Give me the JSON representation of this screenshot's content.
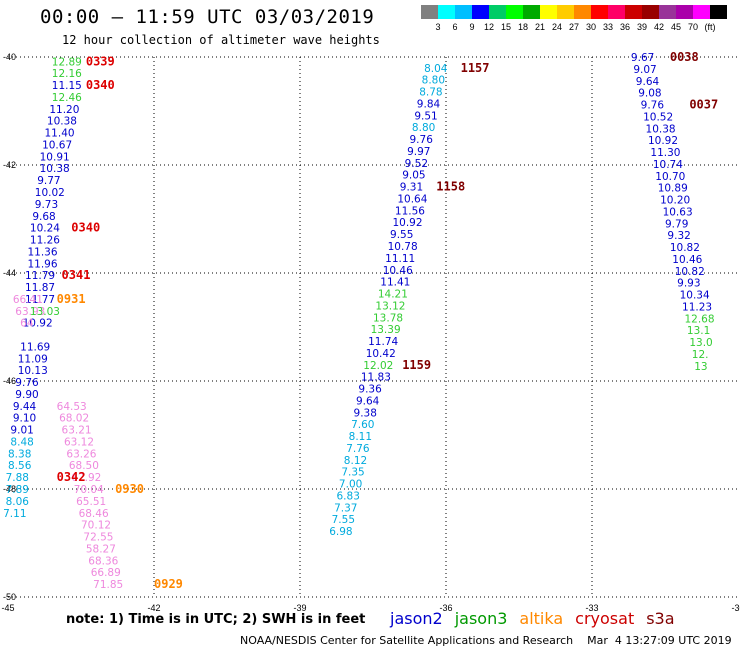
{
  "title": "00:00 – 11:59 UTC 03/03/2019",
  "subtitle": "12 hour collection of altimeter wave heights",
  "note": "note:  1) Time is in UTC; 2) SWH is in feet",
  "footer": "NOAA/NESDIS Center for Satellite Applications and Research    Mar  4 13:27:09 UTC 2019",
  "satellites": [
    {
      "name": "jason2",
      "color": "#0000cc"
    },
    {
      "name": "jason3",
      "color": "#009900"
    },
    {
      "name": "altika",
      "color": "#ff8800"
    },
    {
      "name": "cryosat",
      "color": "#cc0000"
    },
    {
      "name": "s3a",
      "color": "#800000"
    }
  ],
  "colorbar": {
    "colors": [
      "#808080",
      "#00ffff",
      "#00bfff",
      "#0000ff",
      "#00cc66",
      "#00ff00",
      "#00aa00",
      "#ffff00",
      "#ffcc00",
      "#ff8800",
      "#ff0000",
      "#ff0066",
      "#cc0000",
      "#990000",
      "#993399",
      "#aa00aa",
      "#ff00ff",
      "#000000"
    ],
    "labels": [
      "3",
      "6",
      "9",
      "12",
      "15",
      "18",
      "21",
      "24",
      "27",
      "30",
      "33",
      "36",
      "39",
      "42",
      "45",
      "70",
      "(ft)"
    ]
  },
  "chart_data": {
    "type": "scatter",
    "x_ticks": [
      "-45",
      "-42",
      "-39",
      "-36",
      "-33",
      "-30"
    ],
    "y_ticks": [
      "-40",
      "-42",
      "-44",
      "-46",
      "-48",
      "-50"
    ],
    "xlim": [
      -45,
      -30
    ],
    "ylim": [
      -50,
      -40
    ],
    "grid": true,
    "labels": [
      {
        "x": -44.1,
        "y": -40.08,
        "t": "12.89",
        "c": "#33cc33"
      },
      {
        "x": -44.1,
        "y": -40.3,
        "t": "12.16",
        "c": "#33cc33"
      },
      {
        "x": -44.1,
        "y": -40.52,
        "t": "11.15",
        "c": "#0000cc"
      },
      {
        "x": -44.1,
        "y": -40.74,
        "t": "12.46",
        "c": "#33cc33"
      },
      {
        "x": -44.15,
        "y": -40.96,
        "t": "11.20",
        "c": "#0000cc"
      },
      {
        "x": -44.2,
        "y": -41.18,
        "t": "10.38",
        "c": "#0000cc"
      },
      {
        "x": -44.25,
        "y": -41.4,
        "t": "11.40",
        "c": "#0000cc"
      },
      {
        "x": -44.3,
        "y": -41.62,
        "t": "10.67",
        "c": "#0000cc"
      },
      {
        "x": -44.35,
        "y": -41.84,
        "t": "10.91",
        "c": "#0000cc"
      },
      {
        "x": -44.35,
        "y": -42.06,
        "t": "10.38",
        "c": "#0000cc"
      },
      {
        "x": -44.4,
        "y": -42.28,
        "t": "9.77",
        "c": "#0000cc"
      },
      {
        "x": -44.45,
        "y": -42.5,
        "t": "10.02",
        "c": "#0000cc"
      },
      {
        "x": -44.45,
        "y": -42.72,
        "t": "9.73",
        "c": "#0000cc"
      },
      {
        "x": -44.5,
        "y": -42.94,
        "t": "9.68",
        "c": "#0000cc"
      },
      {
        "x": -44.55,
        "y": -43.16,
        "t": "10.24",
        "c": "#0000cc"
      },
      {
        "x": -44.55,
        "y": -43.38,
        "t": "11.26",
        "c": "#0000cc"
      },
      {
        "x": -44.6,
        "y": -43.6,
        "t": "11.36",
        "c": "#0000cc"
      },
      {
        "x": -44.6,
        "y": -43.82,
        "t": "11.96",
        "c": "#0000cc"
      },
      {
        "x": -44.65,
        "y": -44.04,
        "t": "11.79",
        "c": "#0000cc"
      },
      {
        "x": -44.65,
        "y": -44.26,
        "t": "11.87",
        "c": "#0000cc"
      },
      {
        "x": -44.65,
        "y": -44.48,
        "t": "11.77",
        "c": "#0000cc"
      },
      {
        "x": -44.7,
        "y": -44.92,
        "t": "10.92",
        "c": "#0000cc"
      },
      {
        "x": -44.75,
        "y": -45.36,
        "t": "11.69",
        "c": "#0000cc"
      },
      {
        "x": -44.8,
        "y": -45.58,
        "t": "11.09",
        "c": "#0000cc"
      },
      {
        "x": -44.8,
        "y": -45.8,
        "t": "10.13",
        "c": "#0000cc"
      },
      {
        "x": -44.85,
        "y": -46.02,
        "t": "9.76",
        "c": "#0000cc"
      },
      {
        "x": -44.85,
        "y": -46.24,
        "t": "9.90",
        "c": "#0000cc"
      },
      {
        "x": -44.9,
        "y": -46.46,
        "t": "9.44",
        "c": "#0000cc"
      },
      {
        "x": -44.9,
        "y": -46.68,
        "t": "9.10",
        "c": "#0000cc"
      },
      {
        "x": -44.95,
        "y": -46.9,
        "t": "9.01",
        "c": "#0000cc"
      },
      {
        "x": -44.95,
        "y": -47.12,
        "t": "8.48",
        "c": "#00aadd"
      },
      {
        "x": -45.0,
        "y": -47.34,
        "t": "8.38",
        "c": "#00aadd"
      },
      {
        "x": -45.0,
        "y": -47.56,
        "t": "8.56",
        "c": "#00aadd"
      },
      {
        "x": -45.05,
        "y": -47.78,
        "t": "7.88",
        "c": "#00aadd"
      },
      {
        "x": -45.05,
        "y": -48.0,
        "t": "7.89",
        "c": "#00aadd"
      },
      {
        "x": -45.05,
        "y": -48.22,
        "t": "8.06",
        "c": "#00aadd"
      },
      {
        "x": -45.1,
        "y": -48.44,
        "t": "7.11",
        "c": "#00aadd"
      },
      {
        "x": -44.9,
        "y": -44.48,
        "t": "66.41",
        "c": "#ee88dd"
      },
      {
        "x": -44.85,
        "y": -44.7,
        "t": "63.93",
        "c": "#ee88dd"
      },
      {
        "x": -44.75,
        "y": -44.92,
        "t": "64",
        "c": "#ee88dd"
      },
      {
        "x": -44.0,
        "y": -46.46,
        "t": "64.53",
        "c": "#ee88dd"
      },
      {
        "x": -43.95,
        "y": -46.68,
        "t": "68.02",
        "c": "#ee88dd"
      },
      {
        "x": -43.9,
        "y": -46.9,
        "t": "63.21",
        "c": "#ee88dd"
      },
      {
        "x": -43.85,
        "y": -47.12,
        "t": "63.12",
        "c": "#ee88dd"
      },
      {
        "x": -43.8,
        "y": -47.34,
        "t": "63.26",
        "c": "#ee88dd"
      },
      {
        "x": -43.75,
        "y": -47.56,
        "t": "68.50",
        "c": "#ee88dd"
      },
      {
        "x": -43.7,
        "y": -47.78,
        "t": "62.92",
        "c": "#ee88dd"
      },
      {
        "x": -43.65,
        "y": -48.0,
        "t": "70.04",
        "c": "#ee88dd"
      },
      {
        "x": -43.6,
        "y": -48.22,
        "t": "65.51",
        "c": "#ee88dd"
      },
      {
        "x": -43.55,
        "y": -48.44,
        "t": "68.46",
        "c": "#ee88dd"
      },
      {
        "x": -43.5,
        "y": -48.66,
        "t": "70.12",
        "c": "#ee88dd"
      },
      {
        "x": -43.45,
        "y": -48.88,
        "t": "72.55",
        "c": "#ee88dd"
      },
      {
        "x": -43.4,
        "y": -49.1,
        "t": "58.27",
        "c": "#ee88dd"
      },
      {
        "x": -43.35,
        "y": -49.32,
        "t": "68.36",
        "c": "#ee88dd"
      },
      {
        "x": -43.3,
        "y": -49.54,
        "t": "66.89",
        "c": "#ee88dd"
      },
      {
        "x": -43.25,
        "y": -49.76,
        "t": "71.85",
        "c": "#ee88dd"
      },
      {
        "x": -44.55,
        "y": -44.7,
        "t": "13.03",
        "c": "#33cc33"
      },
      {
        "x": -36.45,
        "y": -40.2,
        "t": "8.04",
        "c": "#00aadd"
      },
      {
        "x": -36.5,
        "y": -40.42,
        "t": "8.80",
        "c": "#00aadd"
      },
      {
        "x": -36.55,
        "y": -40.64,
        "t": "8.78",
        "c": "#00aadd"
      },
      {
        "x": -36.6,
        "y": -40.86,
        "t": "9.84",
        "c": "#0000cc"
      },
      {
        "x": -36.65,
        "y": -41.08,
        "t": "9.51",
        "c": "#0000cc"
      },
      {
        "x": -36.7,
        "y": -41.3,
        "t": "8.80",
        "c": "#00aadd"
      },
      {
        "x": -36.75,
        "y": -41.52,
        "t": "9.76",
        "c": "#0000cc"
      },
      {
        "x": -36.8,
        "y": -41.74,
        "t": "9.97",
        "c": "#0000cc"
      },
      {
        "x": -36.85,
        "y": -41.96,
        "t": "9.52",
        "c": "#0000cc"
      },
      {
        "x": -36.9,
        "y": -42.18,
        "t": "9.05",
        "c": "#0000cc"
      },
      {
        "x": -36.95,
        "y": -42.4,
        "t": "9.31",
        "c": "#0000cc"
      },
      {
        "x": -37.0,
        "y": -42.62,
        "t": "10.64",
        "c": "#0000cc"
      },
      {
        "x": -37.05,
        "y": -42.84,
        "t": "11.56",
        "c": "#0000cc"
      },
      {
        "x": -37.1,
        "y": -43.06,
        "t": "10.92",
        "c": "#0000cc"
      },
      {
        "x": -37.15,
        "y": -43.28,
        "t": "9.55",
        "c": "#0000cc"
      },
      {
        "x": -37.2,
        "y": -43.5,
        "t": "10.78",
        "c": "#0000cc"
      },
      {
        "x": -37.25,
        "y": -43.72,
        "t": "11.11",
        "c": "#0000cc"
      },
      {
        "x": -37.3,
        "y": -43.94,
        "t": "10.46",
        "c": "#0000cc"
      },
      {
        "x": -37.35,
        "y": -44.16,
        "t": "11.41",
        "c": "#0000cc"
      },
      {
        "x": -37.4,
        "y": -44.38,
        "t": "14.21",
        "c": "#33cc33"
      },
      {
        "x": -37.45,
        "y": -44.6,
        "t": "13.12",
        "c": "#33cc33"
      },
      {
        "x": -37.5,
        "y": -44.82,
        "t": "13.78",
        "c": "#33cc33"
      },
      {
        "x": -37.55,
        "y": -45.04,
        "t": "13.39",
        "c": "#33cc33"
      },
      {
        "x": -37.6,
        "y": -45.26,
        "t": "11.74",
        "c": "#0000cc"
      },
      {
        "x": -37.65,
        "y": -45.48,
        "t": "10.42",
        "c": "#0000cc"
      },
      {
        "x": -37.7,
        "y": -45.7,
        "t": "12.02",
        "c": "#33cc33"
      },
      {
        "x": -37.75,
        "y": -45.92,
        "t": "11.83",
        "c": "#0000cc"
      },
      {
        "x": -37.8,
        "y": -46.14,
        "t": "9.36",
        "c": "#0000cc"
      },
      {
        "x": -37.85,
        "y": -46.36,
        "t": "9.64",
        "c": "#0000cc"
      },
      {
        "x": -37.9,
        "y": -46.58,
        "t": "9.38",
        "c": "#0000cc"
      },
      {
        "x": -37.95,
        "y": -46.8,
        "t": "7.60",
        "c": "#00aadd"
      },
      {
        "x": -38.0,
        "y": -47.02,
        "t": "8.11",
        "c": "#00aadd"
      },
      {
        "x": -38.05,
        "y": -47.24,
        "t": "7.76",
        "c": "#00aadd"
      },
      {
        "x": -38.1,
        "y": -47.46,
        "t": "8.12",
        "c": "#00aadd"
      },
      {
        "x": -38.15,
        "y": -47.68,
        "t": "7.35",
        "c": "#00aadd"
      },
      {
        "x": -38.2,
        "y": -47.9,
        "t": "7.00",
        "c": "#00aadd"
      },
      {
        "x": -38.25,
        "y": -48.12,
        "t": "6.83",
        "c": "#00aadd"
      },
      {
        "x": -38.3,
        "y": -48.34,
        "t": "7.37",
        "c": "#00aadd"
      },
      {
        "x": -38.35,
        "y": -48.56,
        "t": "7.55",
        "c": "#00aadd"
      },
      {
        "x": -38.4,
        "y": -48.78,
        "t": "6.98",
        "c": "#00aadd"
      },
      {
        "x": -32.2,
        "y": -40.0,
        "t": "9.67",
        "c": "#0000cc"
      },
      {
        "x": -32.15,
        "y": -40.22,
        "t": "9.07",
        "c": "#0000cc"
      },
      {
        "x": -32.1,
        "y": -40.44,
        "t": "9.64",
        "c": "#0000cc"
      },
      {
        "x": -32.05,
        "y": -40.66,
        "t": "9.08",
        "c": "#0000cc"
      },
      {
        "x": -32.0,
        "y": -40.88,
        "t": "9.76",
        "c": "#0000cc"
      },
      {
        "x": -31.95,
        "y": -41.1,
        "t": "10.52",
        "c": "#0000cc"
      },
      {
        "x": -31.9,
        "y": -41.32,
        "t": "10.38",
        "c": "#0000cc"
      },
      {
        "x": -31.85,
        "y": -41.54,
        "t": "10.92",
        "c": "#0000cc"
      },
      {
        "x": -31.8,
        "y": -41.76,
        "t": "11.30",
        "c": "#0000cc"
      },
      {
        "x": -31.75,
        "y": -41.98,
        "t": "10.74",
        "c": "#0000cc"
      },
      {
        "x": -31.7,
        "y": -42.2,
        "t": "10.70",
        "c": "#0000cc"
      },
      {
        "x": -31.65,
        "y": -42.42,
        "t": "10.89",
        "c": "#0000cc"
      },
      {
        "x": -31.6,
        "y": -42.64,
        "t": "10.20",
        "c": "#0000cc"
      },
      {
        "x": -31.55,
        "y": -42.86,
        "t": "10.63",
        "c": "#0000cc"
      },
      {
        "x": -31.5,
        "y": -43.08,
        "t": "9.79",
        "c": "#0000cc"
      },
      {
        "x": -31.45,
        "y": -43.3,
        "t": "9.32",
        "c": "#0000cc"
      },
      {
        "x": -31.4,
        "y": -43.52,
        "t": "10.82",
        "c": "#0000cc"
      },
      {
        "x": -31.35,
        "y": -43.74,
        "t": "10.46",
        "c": "#0000cc"
      },
      {
        "x": -31.3,
        "y": -43.96,
        "t": "10.82",
        "c": "#0000cc"
      },
      {
        "x": -31.25,
        "y": -44.18,
        "t": "9.93",
        "c": "#0000cc"
      },
      {
        "x": -31.2,
        "y": -44.4,
        "t": "10.34",
        "c": "#0000cc"
      },
      {
        "x": -31.15,
        "y": -44.62,
        "t": "11.23",
        "c": "#0000cc"
      },
      {
        "x": -31.1,
        "y": -44.84,
        "t": "12.68",
        "c": "#33cc33"
      },
      {
        "x": -31.05,
        "y": -45.06,
        "t": "13.1",
        "c": "#33cc33"
      },
      {
        "x": -31.0,
        "y": -45.28,
        "t": "13.0",
        "c": "#33cc33"
      },
      {
        "x": -30.95,
        "y": -45.5,
        "t": "12.",
        "c": "#33cc33"
      },
      {
        "x": -30.9,
        "y": -45.72,
        "t": "13",
        "c": "#33cc33"
      }
    ],
    "times": [
      {
        "x": -43.4,
        "y": -40.08,
        "t": "0339",
        "c": "#dd0000"
      },
      {
        "x": -43.4,
        "y": -40.52,
        "t": "0340",
        "c": "#dd0000"
      },
      {
        "x": -43.7,
        "y": -43.16,
        "t": "0340",
        "c": "#dd0000"
      },
      {
        "x": -43.9,
        "y": -44.04,
        "t": "0341",
        "c": "#dd0000"
      },
      {
        "x": -44.0,
        "y": -44.48,
        "t": "0931",
        "c": "#ff8800"
      },
      {
        "x": -44.0,
        "y": -47.78,
        "t": "0342",
        "c": "#dd0000"
      },
      {
        "x": -42.8,
        "y": -48.0,
        "t": "0930",
        "c": "#ff8800"
      },
      {
        "x": -42.0,
        "y": -49.76,
        "t": "0929",
        "c": "#ff8800"
      },
      {
        "x": -35.7,
        "y": -40.2,
        "t": "1157",
        "c": "#800000"
      },
      {
        "x": -36.2,
        "y": -42.4,
        "t": "1158",
        "c": "#800000"
      },
      {
        "x": -36.9,
        "y": -45.7,
        "t": "1159",
        "c": "#800000"
      },
      {
        "x": -31.4,
        "y": -40.0,
        "t": "0038",
        "c": "#800000"
      },
      {
        "x": -31.0,
        "y": -40.88,
        "t": "0037",
        "c": "#800000"
      }
    ]
  }
}
